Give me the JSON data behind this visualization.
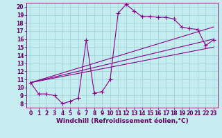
{
  "xlabel": "Windchill (Refroidissement éolien,°C)",
  "xlim": [
    -0.5,
    23.5
  ],
  "ylim": [
    7.5,
    20.5
  ],
  "xticks": [
    0,
    1,
    2,
    3,
    4,
    5,
    6,
    7,
    8,
    9,
    10,
    11,
    12,
    13,
    14,
    15,
    16,
    17,
    18,
    19,
    20,
    21,
    22,
    23
  ],
  "yticks": [
    8,
    9,
    10,
    11,
    12,
    13,
    14,
    15,
    16,
    17,
    18,
    19,
    20
  ],
  "background_color": "#c5ecee",
  "grid_color": "#9fd8dc",
  "line_color": "#880088",
  "main_line": {
    "x": [
      0,
      1,
      2,
      3,
      4,
      5,
      6,
      7,
      8,
      9,
      10,
      11,
      12,
      13,
      14,
      15,
      16,
      17,
      18,
      19,
      20,
      21,
      22,
      23
    ],
    "y": [
      10.6,
      9.2,
      9.2,
      9.0,
      8.0,
      8.3,
      8.7,
      15.9,
      9.3,
      9.5,
      11.0,
      19.2,
      20.3,
      19.5,
      18.8,
      18.8,
      18.7,
      18.7,
      18.5,
      17.5,
      17.3,
      17.2,
      15.2,
      15.9
    ]
  },
  "trend_lines": [
    {
      "x": [
        0,
        23
      ],
      "y": [
        10.6,
        17.5
      ]
    },
    {
      "x": [
        0,
        23
      ],
      "y": [
        10.6,
        16.0
      ]
    },
    {
      "x": [
        0,
        23
      ],
      "y": [
        10.6,
        15.0
      ]
    }
  ],
  "font_color": "#660066",
  "tick_fontsize": 5.5,
  "label_fontsize": 6.5
}
